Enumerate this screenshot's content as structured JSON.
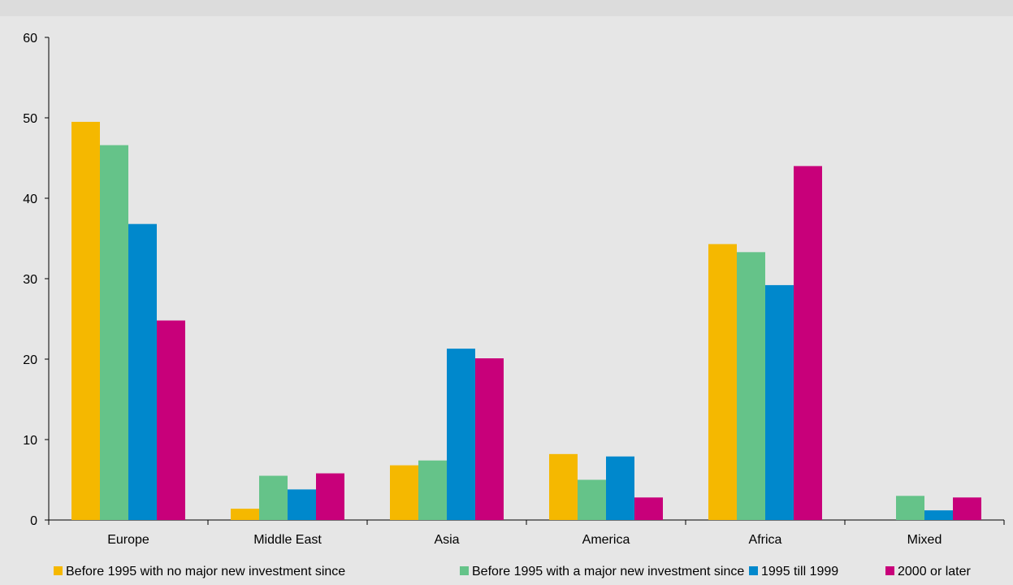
{
  "chart_data": {
    "type": "bar",
    "title": "",
    "xlabel": "",
    "ylabel": "",
    "ylim": [
      0,
      60
    ],
    "yticks": [
      0,
      10,
      20,
      30,
      40,
      50,
      60
    ],
    "grid": false,
    "legend_position": "bottom",
    "categories": [
      "Europe",
      "Middle East",
      "Asia",
      "America",
      "Africa",
      "Mixed"
    ],
    "series": [
      {
        "name": "Before 1995 with no major new investment since",
        "color": "#f5b800",
        "values": [
          49.5,
          1.4,
          6.8,
          8.2,
          34.3,
          0
        ]
      },
      {
        "name": "Before 1995 with a major new investment since",
        "color": "#65c389",
        "values": [
          46.6,
          5.5,
          7.4,
          5.0,
          33.3,
          3.0
        ]
      },
      {
        "name": "1995 till 1999",
        "color": "#0088cc",
        "values": [
          36.8,
          3.8,
          21.3,
          7.9,
          29.2,
          1.2
        ]
      },
      {
        "name": "2000 or later",
        "color": "#c8007a",
        "values": [
          24.8,
          5.8,
          20.1,
          2.8,
          44.0,
          2.8
        ]
      }
    ]
  }
}
